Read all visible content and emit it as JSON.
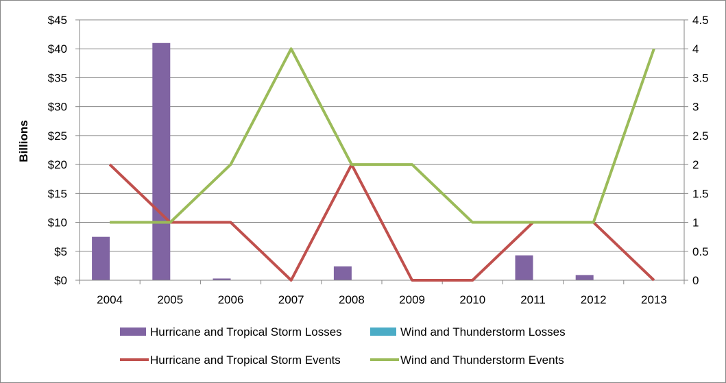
{
  "chart_data": {
    "type": "bar",
    "categories": [
      "2004",
      "2005",
      "2006",
      "2007",
      "2008",
      "2009",
      "2010",
      "2011",
      "2012",
      "2013"
    ],
    "ylabel": "Billions",
    "ylim": [
      0,
      45
    ],
    "y_ticks": [
      "$0",
      "$5",
      "$10",
      "$15",
      "$20",
      "$25",
      "$30",
      "$35",
      "$40",
      "$45"
    ],
    "y2lim": [
      0,
      4.5
    ],
    "y2_ticks": [
      "0",
      "0.5",
      "1",
      "1.5",
      "2",
      "2.5",
      "3",
      "3.5",
      "4",
      "4.5"
    ],
    "grid": true,
    "legend_position": "bottom",
    "series": [
      {
        "name": "Hurricane  and Tropical Storm Losses",
        "type": "bar",
        "axis": "left",
        "color": "#8064a2",
        "values": [
          7.5,
          41.0,
          0.3,
          0,
          2.4,
          0,
          0,
          4.3,
          0.9,
          0
        ]
      },
      {
        "name": "Wind and Thunderstorm Losses",
        "type": "bar",
        "axis": "left",
        "color": "#4bacc6",
        "values": [
          0,
          0,
          0,
          0,
          0,
          0,
          0,
          0,
          0,
          0
        ]
      },
      {
        "name": "Hurricane and Tropical Storm Events",
        "type": "line",
        "axis": "right",
        "color": "#c0504d",
        "values": [
          2,
          1,
          1,
          0,
          2,
          0,
          0,
          1,
          1,
          0
        ]
      },
      {
        "name": "Wind and Thunderstorm Events",
        "type": "line",
        "axis": "right",
        "color": "#9bbb59",
        "values": [
          1,
          1,
          2,
          4,
          2,
          2,
          1,
          1,
          1,
          4
        ]
      }
    ]
  }
}
